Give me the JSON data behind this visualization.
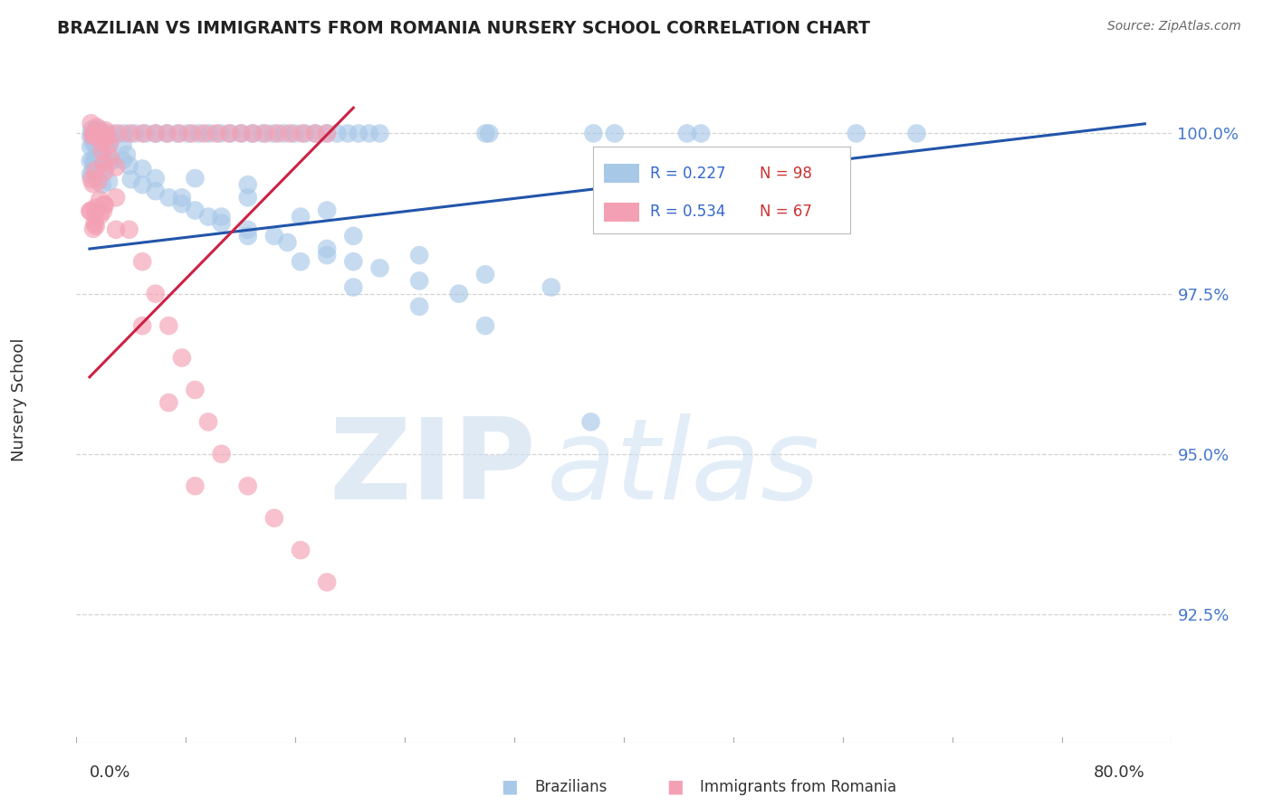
{
  "title": "BRAZILIAN VS IMMIGRANTS FROM ROMANIA NURSERY SCHOOL CORRELATION CHART",
  "source": "Source: ZipAtlas.com",
  "ylabel": "Nursery School",
  "R_blue": 0.227,
  "N_blue": 98,
  "R_pink": 0.534,
  "N_pink": 67,
  "blue_color": "#a8c8e8",
  "pink_color": "#f4a0b4",
  "trendline_blue_color": "#2255aa",
  "trendline_pink_color": "#cc2244",
  "ytick_positions": [
    100.0,
    97.5,
    95.0,
    92.5
  ],
  "ytick_labels": [
    "100.0%",
    "97.5%",
    "95.0%",
    "92.5%"
  ],
  "ymin": 90.5,
  "ymax": 101.2,
  "xmin": -1.0,
  "xmax": 82.0,
  "blue_trendline_x": [
    0,
    80
  ],
  "blue_trendline_y": [
    98.2,
    100.15
  ],
  "pink_trendline_x": [
    0,
    20
  ],
  "pink_trendline_y": [
    96.2,
    100.4
  ],
  "legend_blue_label": "Brazilians",
  "legend_pink_label": "Immigrants from Romania",
  "watermark_zip": "ZIP",
  "watermark_atlas": "atlas"
}
